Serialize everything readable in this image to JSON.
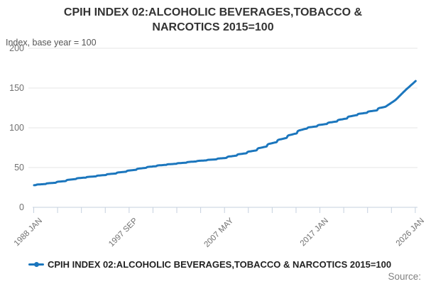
{
  "header": {
    "title": "CPIH INDEX 02:ALCOHOLIC BEVERAGES,TOBACCO & NARCOTICS 2015=100",
    "subtitle": "Index, base year = 100"
  },
  "chart_data": {
    "type": "line",
    "title": "CPIH INDEX 02:ALCOHOLIC BEVERAGES,TOBACCO & NARCOTICS 2015=100",
    "subtitle": "Index, base year = 100",
    "ylabel": "Index, base year = 100",
    "ylim": [
      0,
      200
    ],
    "ytick_values": [
      200,
      150,
      100,
      50,
      0
    ],
    "ytick_labels": [
      "200",
      "150",
      "100",
      "50",
      "0"
    ],
    "xtick_labels": [
      "1988 JAN",
      "1997 SEP",
      "2007 MAY",
      "2017 JAN",
      "2026 JAN"
    ],
    "x_range": [
      "1988 JAN",
      "2026 JAN"
    ],
    "frequency": "monthly",
    "grid": "horizontal",
    "legend_position": "bottom",
    "series": [
      {
        "name": "CPIH INDEX 02:ALCOHOLIC BEVERAGES,TOBACCO & NARCOTICS 2015=100",
        "color": "#1b76bd",
        "anchors": {
          "note": "January values read from chart; monthly line steps between anchors",
          "years": [
            1988,
            1989,
            1990,
            1991,
            1992,
            1993,
            1994,
            1995,
            1996,
            1997,
            1998,
            1999,
            2000,
            2001,
            2002,
            2003,
            2004,
            2005,
            2006,
            2007,
            2008,
            2009,
            2010,
            2011,
            2012,
            2013,
            2014,
            2015,
            2016,
            2017,
            2018,
            2019,
            2020,
            2021,
            2022,
            2023,
            2024,
            2025,
            2026
          ],
          "values": [
            27.8,
            29.2,
            30.8,
            32.9,
            35.4,
            37.3,
            38.8,
            40.5,
            42.4,
            44.6,
            47.0,
            49.5,
            51.6,
            53.3,
            54.6,
            56.0,
            57.6,
            58.9,
            60.2,
            62.0,
            64.8,
            67.8,
            71.3,
            76.1,
            81.6,
            86.9,
            92.6,
            98.7,
            101.6,
            104.6,
            107.7,
            111.4,
            115.7,
            118.7,
            121.7,
            126.5,
            135.0,
            147.5,
            158.8
          ]
        }
      }
    ]
  },
  "footer": {
    "source_label": "Source:"
  },
  "colors": {
    "line": "#1b76bd",
    "grid": "#e6e6e6",
    "axis": "#c5d0de",
    "title_text": "#333333",
    "tick_text": "#707070"
  }
}
